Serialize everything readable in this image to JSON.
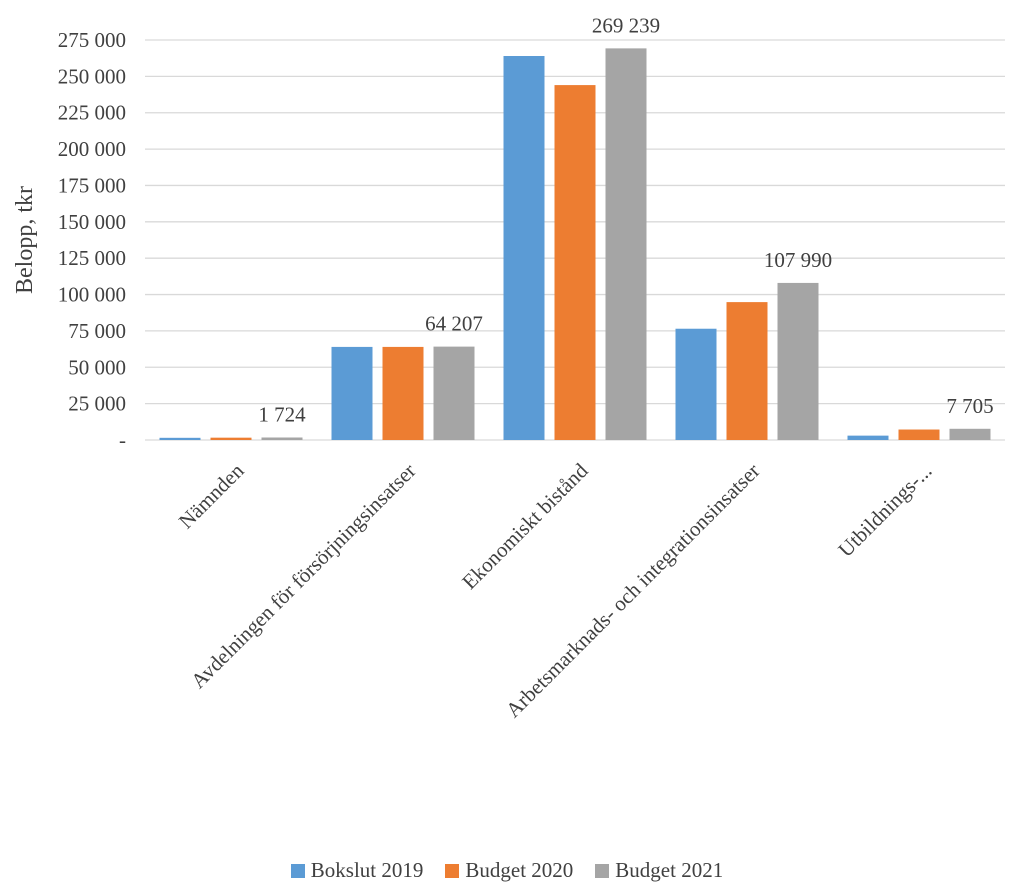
{
  "chart_data": {
    "type": "bar",
    "ylabel": "Belopp, tkr",
    "ylim": [
      0,
      275000
    ],
    "yticks": [
      0,
      25000,
      50000,
      75000,
      100000,
      125000,
      150000,
      175000,
      200000,
      225000,
      250000,
      275000
    ],
    "ytick_labels": [
      "-",
      "25 000",
      "50 000",
      "75 000",
      "100 000",
      "125 000",
      "150 000",
      "175 000",
      "200 000",
      "225 000",
      "250 000",
      "275 000"
    ],
    "categories": [
      "Nämnden",
      "Avdelningen för försörjningsinsatser",
      "Ekonomiskt bistånd",
      "Arbetsmarknads- och integrationsinsatser",
      "Utbildnings-..."
    ],
    "series": [
      {
        "name": "Bokslut 2019",
        "color": "#5B9BD5",
        "values": [
          1500,
          64000,
          264000,
          76500,
          3000
        ]
      },
      {
        "name": "Budget 2020",
        "color": "#ED7D31",
        "values": [
          1600,
          64000,
          244000,
          94800,
          7200
        ]
      },
      {
        "name": "Budget 2021",
        "color": "#A5A5A5",
        "values": [
          1724,
          64207,
          269239,
          107990,
          7705
        ]
      }
    ],
    "data_labels": [
      {
        "category": "Nämnden",
        "series": "Budget 2021",
        "text": "1 724"
      },
      {
        "category": "Avdelningen för försörjningsinsatser",
        "series": "Budget 2021",
        "text": "64 207"
      },
      {
        "category": "Ekonomiskt bistånd",
        "series": "Budget 2021",
        "text": "269 239"
      },
      {
        "category": "Arbetsmarknads- och integrationsinsatser",
        "series": "Budget 2021",
        "text": "107 990"
      },
      {
        "category": "Utbildnings-...",
        "series": "Budget 2021",
        "text": "7 705"
      }
    ],
    "grid": true,
    "legend_position": "bottom"
  }
}
